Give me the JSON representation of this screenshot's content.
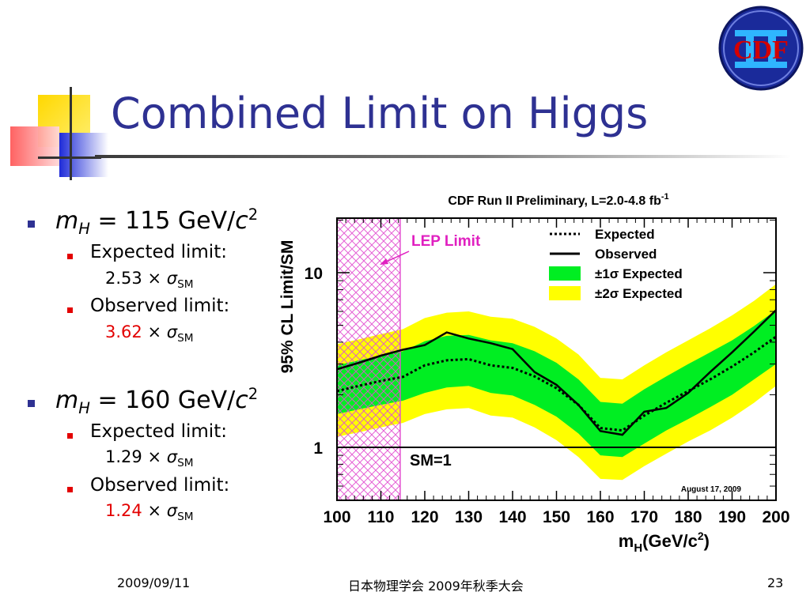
{
  "slide": {
    "title": "Combined Limit on Higgs",
    "logo_text": "CDF",
    "footer": {
      "date": "2009/09/11",
      "conference": "日本物理学会 2009年秋季大会",
      "page": "23"
    }
  },
  "bullets": [
    {
      "mass_var": "m",
      "mass_sub": "H",
      "mass_eq": " = 115 GeV/",
      "mass_c": "c",
      "mass_exp": "2",
      "expected_label": "Expected limit:",
      "expected_value": "2.53",
      "observed_label": "Observed limit:",
      "observed_value": "3.62",
      "times": "×",
      "sigma": "σ",
      "sigma_sub": "SM"
    },
    {
      "mass_var": "m",
      "mass_sub": "H",
      "mass_eq": " = 160 GeV/",
      "mass_c": "c",
      "mass_exp": "2",
      "expected_label": "Expected limit:",
      "expected_value": "1.29",
      "observed_label": "Observed limit:",
      "observed_value": "1.24",
      "times": "×",
      "sigma": "σ",
      "sigma_sub": "SM"
    }
  ],
  "chart_data": {
    "type": "line",
    "title": "CDF Run II Preliminary, L=2.0-4.8 fb",
    "title_sup": "-1",
    "ylabel": "95% CL Limit/SM",
    "xlabel_main": "m",
    "xlabel_sub": "H",
    "xlabel_unit": "(GeV/c",
    "xlabel_unit_sup": "2",
    "xlabel_close": ")",
    "xlim": [
      100,
      200
    ],
    "ylim": [
      0.5,
      20
    ],
    "y_scale": "log",
    "x_ticks": [
      100,
      110,
      120,
      130,
      140,
      150,
      160,
      170,
      180,
      190,
      200
    ],
    "y_tick_labels": [
      {
        "value": 1,
        "label": "1"
      },
      {
        "value": 10,
        "label": "10"
      }
    ],
    "lep_region": {
      "x": [
        100,
        114.4
      ],
      "label": "LEP Limit"
    },
    "sm_line": {
      "value": 1,
      "label": "SM=1"
    },
    "date_annotation": "August 17, 2009",
    "legend_position": "top-right",
    "legend": [
      {
        "label": "Expected",
        "style": "dotted"
      },
      {
        "label": "Observed",
        "style": "solid"
      },
      {
        "label": "±1σ Expected",
        "style": "fill",
        "color": "#00ee22"
      },
      {
        "label": "±2σ Expected",
        "style": "fill",
        "color": "#ffff00"
      }
    ],
    "mass": [
      100,
      105,
      110,
      115,
      120,
      125,
      130,
      135,
      140,
      145,
      150,
      155,
      160,
      165,
      170,
      175,
      180,
      185,
      190,
      195,
      200
    ],
    "series": [
      {
        "name": "Observed",
        "values": [
          2.8,
          3.05,
          3.35,
          3.62,
          3.85,
          4.55,
          4.2,
          3.95,
          3.65,
          2.7,
          2.28,
          1.75,
          1.24,
          1.18,
          1.6,
          1.68,
          2.05,
          2.7,
          3.5,
          4.6,
          6.1
        ]
      },
      {
        "name": "Expected",
        "values": [
          2.1,
          2.25,
          2.4,
          2.53,
          2.95,
          3.15,
          3.2,
          2.95,
          2.85,
          2.55,
          2.18,
          1.75,
          1.29,
          1.25,
          1.52,
          1.8,
          2.1,
          2.45,
          2.9,
          3.5,
          4.3
        ]
      }
    ],
    "band_1sigma": {
      "low": [
        1.55,
        1.65,
        1.75,
        1.85,
        2.05,
        2.2,
        2.25,
        2.05,
        1.98,
        1.75,
        1.5,
        1.2,
        0.9,
        0.88,
        1.05,
        1.25,
        1.45,
        1.7,
        2.0,
        2.45,
        3.0
      ],
      "high": [
        2.95,
        3.15,
        3.35,
        3.55,
        4.05,
        4.35,
        4.4,
        4.1,
        3.95,
        3.55,
        3.05,
        2.45,
        1.82,
        1.78,
        2.15,
        2.55,
        3.0,
        3.5,
        4.1,
        4.95,
        6.1
      ]
    },
    "band_2sigma": {
      "low": [
        1.15,
        1.22,
        1.3,
        1.38,
        1.55,
        1.65,
        1.68,
        1.52,
        1.48,
        1.3,
        1.1,
        0.88,
        0.66,
        0.65,
        0.78,
        0.92,
        1.08,
        1.25,
        1.48,
        1.8,
        2.25
      ],
      "high": [
        3.9,
        4.15,
        4.45,
        4.75,
        5.5,
        5.9,
        6.0,
        5.6,
        5.45,
        4.9,
        4.2,
        3.4,
        2.5,
        2.45,
        2.95,
        3.5,
        4.1,
        4.8,
        5.7,
        6.9,
        8.6
      ]
    }
  }
}
